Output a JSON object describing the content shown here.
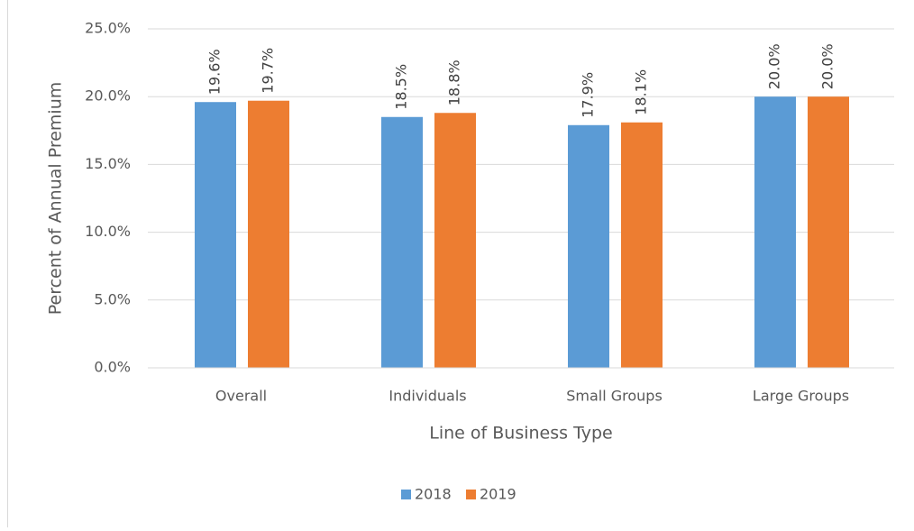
{
  "chart_data": {
    "type": "bar",
    "categories": [
      "Overall",
      "Individuals",
      "Small Groups",
      "Large Groups"
    ],
    "series": [
      {
        "name": "2018",
        "color": "#5b9bd5",
        "values": [
          19.6,
          18.5,
          17.9,
          20.0
        ],
        "value_labels": [
          "19.6%",
          "18.5%",
          "17.9%",
          "20.0%"
        ]
      },
      {
        "name": "2019",
        "color": "#ed7d31",
        "values": [
          19.7,
          18.8,
          18.1,
          20.0
        ],
        "value_labels": [
          "19.7%",
          "18.8%",
          "18.1%",
          "20.0%"
        ]
      }
    ],
    "ylim": [
      0,
      25
    ],
    "yticks": [
      {
        "value": 0,
        "label": "0.0%"
      },
      {
        "value": 5,
        "label": "5.0%"
      },
      {
        "value": 10,
        "label": "10.0%"
      },
      {
        "value": 15,
        "label": "15.0%"
      },
      {
        "value": 20,
        "label": "20.0%"
      },
      {
        "value": 25,
        "label": "25.0%"
      }
    ],
    "y_label": "Percent of Annual Premium",
    "x_label": "Line of Business Type",
    "grid": true,
    "legend": "bottom"
  }
}
